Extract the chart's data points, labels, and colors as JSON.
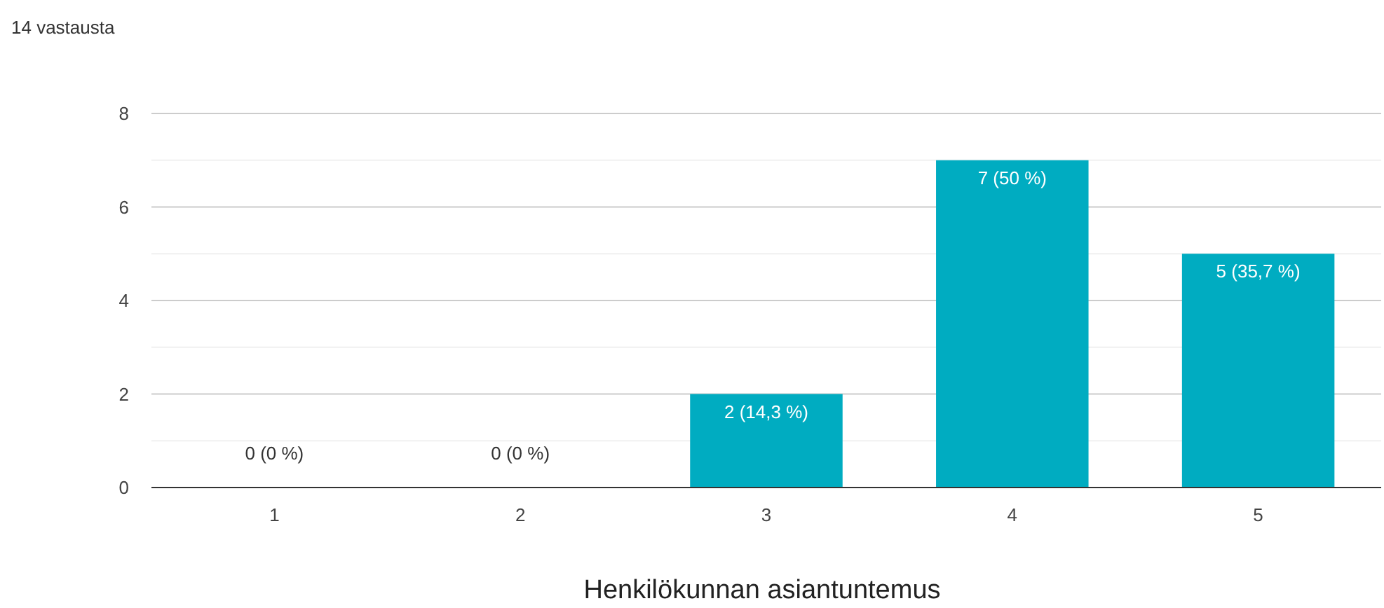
{
  "chart_data": {
    "type": "bar",
    "title": "14 vastausta",
    "xlabel": "Henkilökunnan asiantuntemus",
    "categories": [
      "1",
      "2",
      "3",
      "4",
      "5"
    ],
    "values": [
      0,
      0,
      2,
      7,
      5
    ],
    "color": "#00acc1",
    "value_labels": [
      "0 (0 %)",
      "0 (0 %)",
      "2 (14,3 %)",
      "7 (50 %)",
      "5 (35,7 %)"
    ],
    "ylim": [
      0,
      8
    ],
    "yticks": [
      0,
      {
        "value": 1,
        "label": null
      },
      2,
      {
        "value": 3,
        "label": null
      },
      4,
      {
        "value": 5,
        "label": null
      },
      6,
      {
        "value": 7,
        "label": null
      },
      8
    ],
    "grid": "y"
  }
}
